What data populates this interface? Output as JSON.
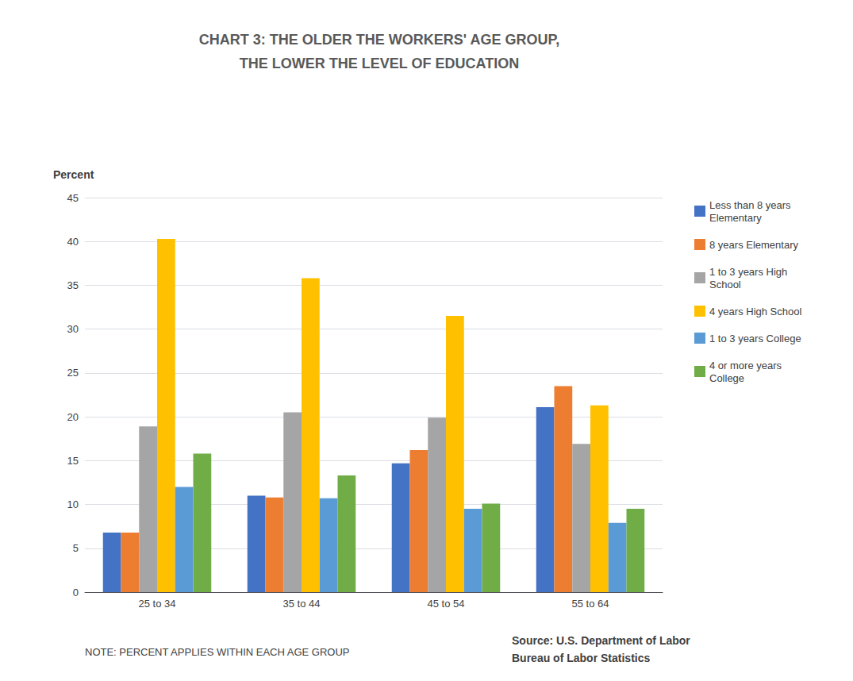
{
  "chart_data": {
    "type": "bar",
    "title": "CHART 3: THE OLDER THE WORKERS' AGE GROUP,\nTHE LOWER THE LEVEL OF EDUCATION",
    "ylabel": "Percent",
    "categories": [
      "25 to 34",
      "35 to 44",
      "45 to 54",
      "55 to 64"
    ],
    "series": [
      {
        "name": "Less than 8 years\nElementary",
        "color": "#4472C4",
        "values": [
          6.8,
          11.0,
          14.7,
          21.1
        ]
      },
      {
        "name": "8 years Elementary",
        "color": "#ED7D31",
        "values": [
          6.8,
          10.8,
          16.2,
          23.5
        ]
      },
      {
        "name": "1 to 3 years High\nSchool",
        "color": "#A5A5A5",
        "values": [
          18.9,
          20.5,
          19.9,
          16.9
        ]
      },
      {
        "name": "4 years High School",
        "color": "#FFC000",
        "values": [
          40.3,
          35.8,
          31.5,
          21.3
        ]
      },
      {
        "name": "1 to 3 years College",
        "color": "#5B9BD5",
        "values": [
          12.0,
          10.7,
          9.5,
          7.9
        ]
      },
      {
        "name": "4 or more years\nCollege",
        "color": "#70AD47",
        "values": [
          15.8,
          13.3,
          10.1,
          9.5
        ]
      }
    ],
    "ylim": [
      0,
      45
    ],
    "yticks": [
      0,
      5,
      10,
      15,
      20,
      25,
      30,
      35,
      40,
      45
    ],
    "grid": true,
    "legend": "right",
    "annotations": [
      "NOTE: PERCENT APPLIES WITHIN EACH AGE GROUP",
      "Source: U.S. Department of Labor\nBureau of Labor Statistics"
    ]
  }
}
